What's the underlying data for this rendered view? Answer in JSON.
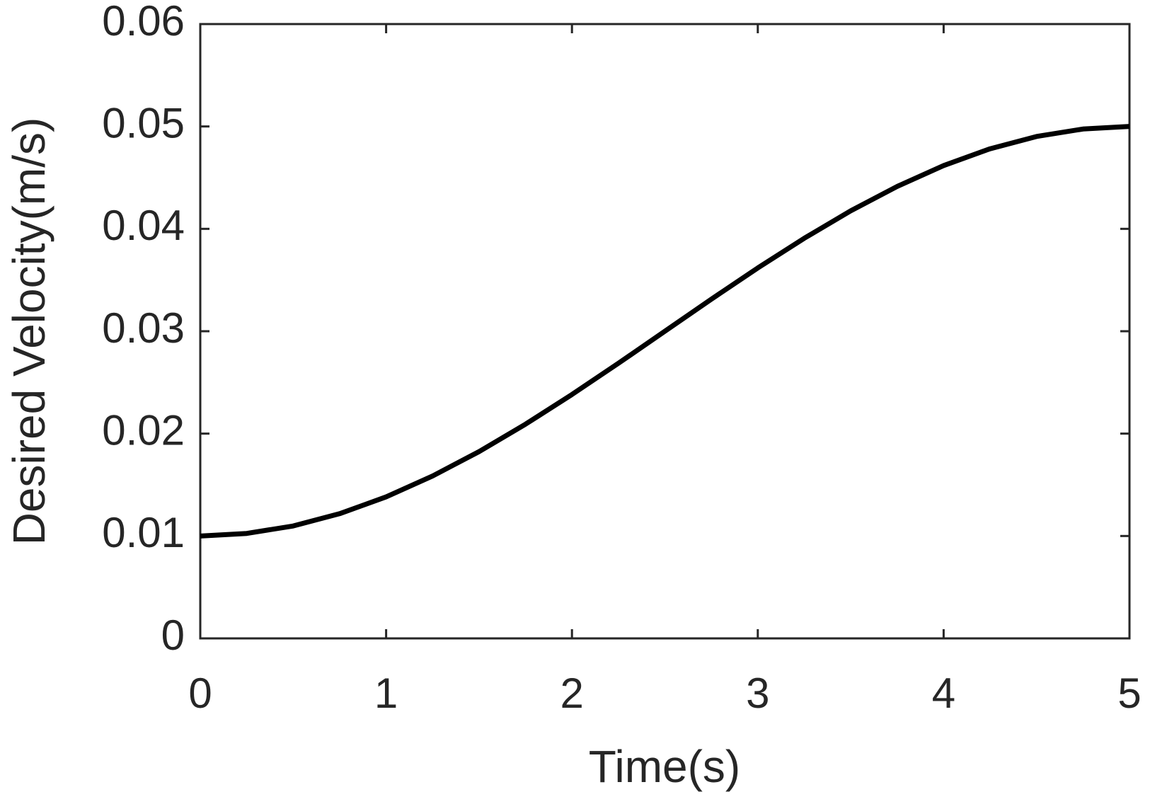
{
  "chart_data": {
    "type": "line",
    "xlabel": "Time(s)",
    "ylabel": "Desired Velocity(m/s)",
    "x": [
      0,
      0.25,
      0.5,
      0.75,
      1,
      1.25,
      1.5,
      1.75,
      2,
      2.25,
      2.5,
      2.75,
      3,
      3.25,
      3.5,
      3.75,
      4,
      4.25,
      4.5,
      4.75,
      5
    ],
    "series": [
      {
        "color": "#000000",
        "values": [
          0.01,
          0.01025,
          0.01098,
          0.01218,
          0.01382,
          0.01586,
          0.01824,
          0.02092,
          0.02382,
          0.02687,
          0.03,
          0.03313,
          0.03618,
          0.03908,
          0.04176,
          0.04414,
          0.04618,
          0.04782,
          0.04902,
          0.04975,
          0.05
        ]
      }
    ],
    "xlim": [
      0,
      5
    ],
    "xticks": [
      0,
      1,
      2,
      3,
      4,
      5
    ],
    "ylim": [
      0,
      0.06
    ],
    "yticks": [
      0,
      0.01,
      0.02,
      0.03,
      0.04,
      0.05,
      0.06
    ]
  }
}
